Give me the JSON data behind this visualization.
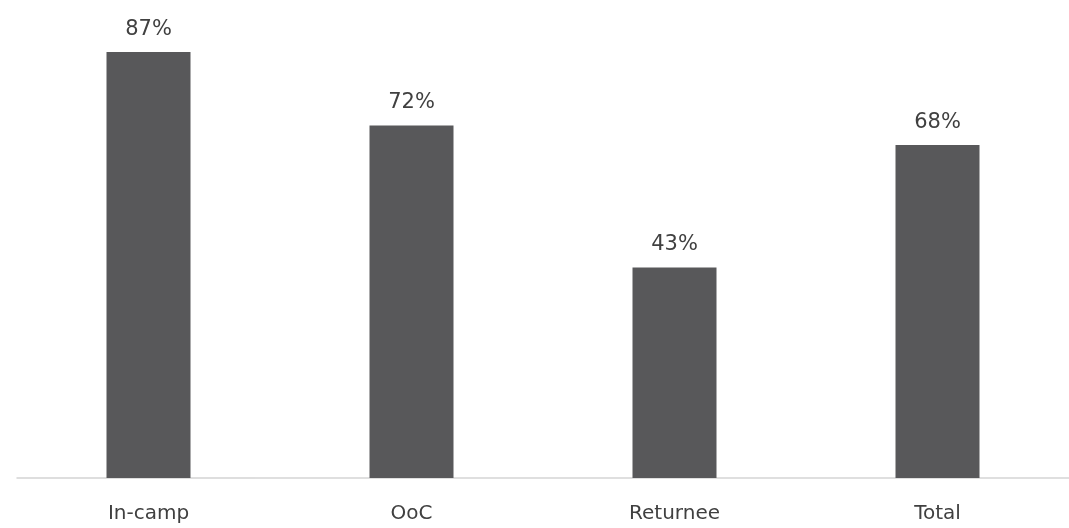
{
  "chart_data": {
    "type": "bar",
    "categories": [
      "In-camp",
      "OoC",
      "Returnee",
      "Total"
    ],
    "values": [
      87,
      72,
      43,
      68
    ],
    "color": "#58585a",
    "value_labels": [
      "87%",
      "72%",
      "43%",
      "68%"
    ]
  }
}
